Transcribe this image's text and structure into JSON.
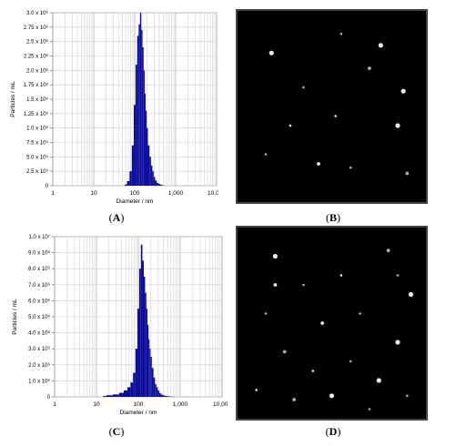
{
  "chart_data": [
    {
      "id": "A",
      "type": "bar",
      "ylabel": "Particles / mL",
      "xlabel": "Diameter / nm",
      "x_scale": "log",
      "xlim": [
        1,
        10000
      ],
      "x_ticks": [
        "1",
        "10",
        "100",
        "1,000",
        "10,000"
      ],
      "ylim": [
        0,
        3000000
      ],
      "y_ticks": [
        "0",
        "2.5 x 10⁵",
        "5.0 x 10⁵",
        "7.5 x 10⁵",
        "1.0 x 10⁶",
        "1.25 x 10⁶",
        "1.5 x 10⁶",
        "1.75 x 10⁶",
        "2.0 x 10⁶",
        "2.25 x 10⁶",
        "2.5 x 10⁶",
        "2.75 x 10⁶",
        "3.0 x 10⁶"
      ],
      "y_tick_values": [
        0,
        250000,
        500000,
        750000,
        1000000,
        1250000,
        1500000,
        1750000,
        2000000,
        2250000,
        2500000,
        2750000,
        3000000
      ],
      "grid": true,
      "color": "#0a0a9c",
      "x": [
        60,
        70,
        80,
        90,
        100,
        110,
        120,
        130,
        140,
        150,
        160,
        170,
        180,
        190,
        200,
        220,
        240,
        260,
        280,
        300,
        330,
        360,
        400,
        450,
        500
      ],
      "values": [
        20000,
        80000,
        250000,
        700000,
        1400000,
        2100000,
        2600000,
        2800000,
        3000000,
        2700000,
        2400000,
        2000000,
        1600000,
        1300000,
        1000000,
        700000,
        500000,
        350000,
        250000,
        150000,
        90000,
        50000,
        30000,
        15000,
        5000
      ]
    },
    {
      "id": "C",
      "type": "bar",
      "ylabel": "Particles / mL",
      "xlabel": "Diameter / nm",
      "x_scale": "log",
      "xlim": [
        1,
        10000
      ],
      "x_ticks": [
        "1",
        "10",
        "100",
        "1,000",
        "10,000"
      ],
      "ylim": [
        0,
        10000000
      ],
      "y_ticks": [
        "0",
        "1.0 x 10⁶",
        "2.0 x 10⁶",
        "3.0 x 10⁶",
        "4.0 x 10⁶",
        "5.0 x 10⁶",
        "6.0 x 10⁶",
        "7.0 x 10⁶",
        "8.0 x 10⁶",
        "9.0 x 10⁶",
        "1.0 x 10⁷"
      ],
      "y_tick_values": [
        0,
        1000000,
        2000000,
        3000000,
        4000000,
        5000000,
        6000000,
        7000000,
        8000000,
        9000000,
        10000000
      ],
      "grid": true,
      "color": "#0a0a9c",
      "x": [
        15,
        20,
        30,
        40,
        50,
        60,
        70,
        80,
        90,
        100,
        110,
        120,
        130,
        140,
        150,
        160,
        170,
        180,
        190,
        200,
        220,
        240,
        260,
        280,
        300,
        330,
        360,
        400,
        450,
        500,
        600,
        700
      ],
      "values": [
        50000,
        100000,
        150000,
        250000,
        400000,
        600000,
        900000,
        1500000,
        3000000,
        5500000,
        8000000,
        9500000,
        8500000,
        7500000,
        6500000,
        5500000,
        4500000,
        3600000,
        3000000,
        2500000,
        1800000,
        1200000,
        800000,
        600000,
        400000,
        250000,
        150000,
        100000,
        60000,
        40000,
        20000,
        10000
      ]
    }
  ],
  "captions": {
    "a": "A",
    "b": "B",
    "c": "C",
    "d": "D"
  },
  "images": {
    "b_dots": [
      [
        18,
        22
      ],
      [
        35,
        40
      ],
      [
        52,
        55
      ],
      [
        70,
        30
      ],
      [
        85,
        60
      ],
      [
        15,
        75
      ],
      [
        43,
        80
      ],
      [
        60,
        82
      ],
      [
        76,
        18
      ],
      [
        90,
        85
      ],
      [
        28,
        60
      ],
      [
        55,
        12
      ],
      [
        88,
        42
      ]
    ],
    "d_dots": [
      [
        20,
        15
      ],
      [
        35,
        30
      ],
      [
        55,
        25
      ],
      [
        80,
        12
      ],
      [
        92,
        35
      ],
      [
        15,
        45
      ],
      [
        45,
        50
      ],
      [
        65,
        45
      ],
      [
        85,
        60
      ],
      [
        25,
        65
      ],
      [
        40,
        75
      ],
      [
        60,
        70
      ],
      [
        75,
        80
      ],
      [
        90,
        88
      ],
      [
        10,
        85
      ],
      [
        30,
        90
      ],
      [
        50,
        88
      ],
      [
        70,
        95
      ],
      [
        20,
        30
      ],
      [
        85,
        25
      ]
    ]
  }
}
